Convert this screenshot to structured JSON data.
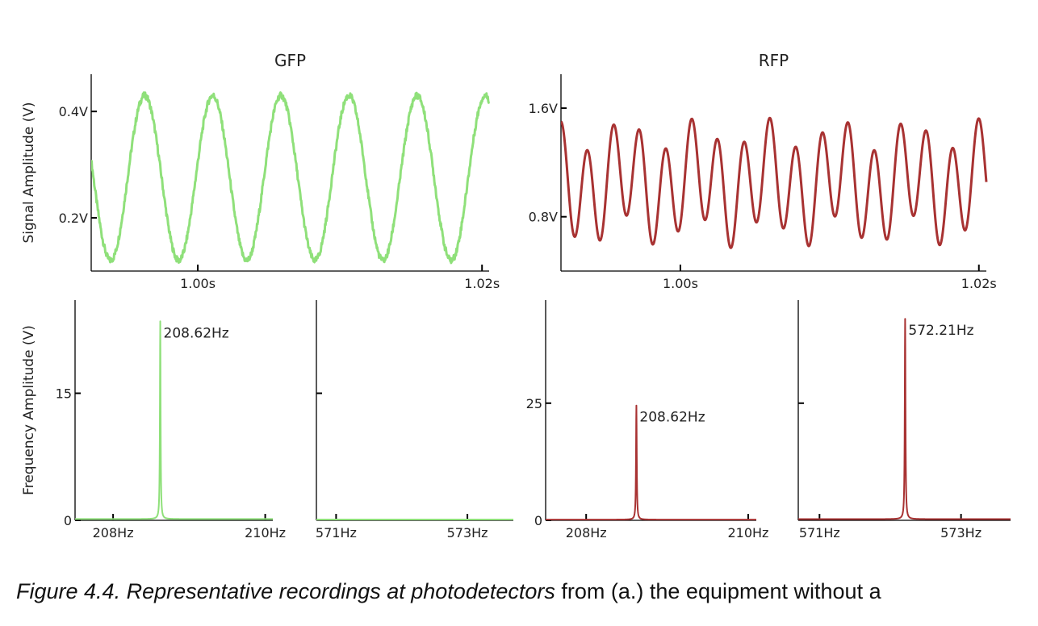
{
  "colors": {
    "gfp": "#8fe07a",
    "rfp": "#a83232",
    "axis": "#000000"
  },
  "caption": {
    "italic": "Figure 4.4. Representative recordings at photodetectors",
    "regular": " from (a.) the equipment without a"
  },
  "chart_data": [
    {
      "type": "line",
      "title": "GFP",
      "ylabel": "Signal Amplitude (V)",
      "xlabel": "",
      "series": [
        {
          "color": "#8fe07a",
          "freq_hz": 208.62,
          "amplitude": 0.155,
          "offset": 0.275
        }
      ],
      "xlim": [
        0.9925,
        1.0205
      ],
      "ylim": [
        0.1,
        0.47
      ],
      "x_ticks": [
        1.0,
        1.02
      ],
      "x_ticklabels": [
        "1.00s",
        "1.02s"
      ],
      "y_ticks": [
        0.2,
        0.4
      ],
      "y_ticklabels": [
        "0.2V",
        "0.4V"
      ]
    },
    {
      "type": "line",
      "title": "RFP",
      "ylabel": "",
      "xlabel": "",
      "series": [
        {
          "color": "#a83232",
          "components": [
            {
              "freq_hz": 208.62,
              "amplitude": 0.12
            },
            {
              "freq_hz": 572.21,
              "amplitude": 0.36
            }
          ],
          "offset": 1.05
        }
      ],
      "xlim": [
        0.992,
        1.0205
      ],
      "ylim": [
        0.4,
        1.85
      ],
      "x_ticks": [
        1.0,
        1.02
      ],
      "x_ticklabels": [
        "1.00s",
        "1.02s"
      ],
      "y_ticks": [
        0.8,
        1.6
      ],
      "y_ticklabels": [
        "0.8V",
        "1.6V"
      ]
    },
    {
      "type": "line",
      "title": "",
      "ylabel": "Frequency Amplitude (V)",
      "xlabel": "",
      "series": [
        {
          "color": "#8fe07a",
          "peak_x": 208.62,
          "peak_y": 23.5,
          "baseline": 0.15
        }
      ],
      "peak_label": "208.62Hz",
      "xlim": [
        207.5,
        210.1
      ],
      "ylim": [
        0,
        26
      ],
      "x_ticks": [
        208,
        210
      ],
      "x_ticklabels": [
        "208Hz",
        "210Hz"
      ],
      "y_ticks": [
        0,
        15
      ],
      "y_ticklabels": [
        "0",
        "15"
      ]
    },
    {
      "type": "line",
      "title": "",
      "ylabel": "",
      "xlabel": "",
      "series": [
        {
          "color": "#8fe07a",
          "flat_y": 0.05
        }
      ],
      "xlim": [
        570.7,
        573.7
      ],
      "ylim": [
        0,
        26
      ],
      "x_ticks": [
        571,
        573
      ],
      "x_ticklabels": [
        "571Hz",
        "573Hz"
      ],
      "y_ticks": [
        15
      ],
      "y_ticklabels": [
        ""
      ]
    },
    {
      "type": "line",
      "title": "",
      "ylabel": "",
      "xlabel": "",
      "series": [
        {
          "color": "#a83232",
          "peak_x": 208.62,
          "peak_y": 24.5,
          "baseline": 0.15
        }
      ],
      "peak_label": "208.62Hz",
      "xlim": [
        207.5,
        210.1
      ],
      "ylim": [
        0,
        47
      ],
      "x_ticks": [
        208,
        210
      ],
      "x_ticklabels": [
        "208Hz",
        "210Hz"
      ],
      "y_ticks": [
        0,
        25
      ],
      "y_ticklabels": [
        "0",
        "25"
      ]
    },
    {
      "type": "line",
      "title": "",
      "ylabel": "",
      "xlabel": "",
      "series": [
        {
          "color": "#a83232",
          "peak_x": 572.21,
          "peak_y": 43.0,
          "baseline": 0.25
        }
      ],
      "peak_label": "572.21Hz",
      "xlim": [
        570.7,
        573.7
      ],
      "ylim": [
        0,
        47
      ],
      "x_ticks": [
        571,
        573
      ],
      "x_ticklabels": [
        "571Hz",
        "573Hz"
      ],
      "y_ticks": [
        25
      ],
      "y_ticklabels": [
        ""
      ]
    }
  ]
}
